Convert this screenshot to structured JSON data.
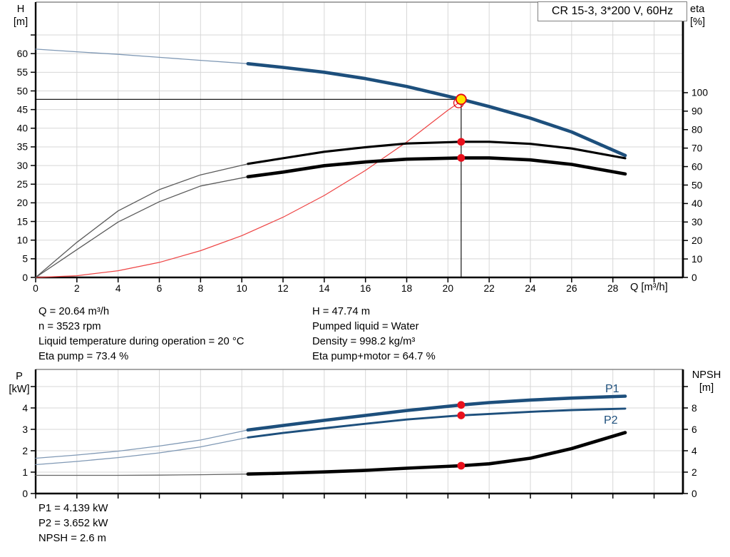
{
  "axis_labels": {
    "top_left": [
      "H",
      "[m]"
    ],
    "top_right": [
      "eta",
      "[%]"
    ],
    "bottom_left": [
      "P",
      "[kW]"
    ],
    "bottom_right": [
      "NPSH",
      "[m]"
    ]
  },
  "operating_point": {
    "left": [
      "Q = 20.64 m³/h",
      "n = 3523 rpm",
      "Liquid temperature during operation = 20 °C",
      "Eta pump = 73.4 %"
    ],
    "right": [
      "H = 47.74 m",
      "Pumped liquid = Water",
      "Density = 998.2 kg/m³",
      "Eta pump+motor = 64.7 %"
    ]
  },
  "results": [
    "P1 = 4.139 kW",
    "P2 = 3.652 kW",
    "NPSH = 2.6 m"
  ],
  "colors": {
    "curve_blue": "#1d4f7c",
    "thin_blue": "#8099b5",
    "curve_black": "#000000",
    "thin_gray": "#5a5a5a",
    "system_red": "#ee4444",
    "dot_red": "#e8101c",
    "duty_yellow": "#ffe400",
    "grid": "#d7d7d7"
  },
  "chart_data": [
    {
      "id": "head-efficiency-chart",
      "type": "line",
      "title": "CR 15-3, 3*200 V, 60Hz",
      "xlabel": "Q [m³/h]",
      "ylabel_left": "H [m]",
      "ylabel_right": "eta [%]",
      "xlim": [
        0,
        31.4
      ],
      "ylim_left": [
        0,
        73.8
      ],
      "ylim_right": [
        0,
        149
      ],
      "grid": true,
      "grid_color": "#d7d7d7",
      "x_ticks": {
        "values": [
          0,
          2,
          4,
          6,
          8,
          10,
          12,
          14,
          16,
          18,
          20,
          22,
          24,
          26,
          28,
          30
        ],
        "labels": [
          "0",
          "2",
          "4",
          "6",
          "8",
          "10",
          "12",
          "14",
          "16",
          "18",
          "20",
          "22",
          "24",
          "26",
          "28",
          ""
        ]
      },
      "left_ticks": {
        "values": [
          0,
          5,
          10,
          15,
          20,
          25,
          30,
          35,
          40,
          45,
          50,
          55,
          60,
          65
        ],
        "labels": [
          "0",
          "5",
          "10",
          "15",
          "20",
          "25",
          "30",
          "35",
          "40",
          "45",
          "50",
          "55",
          "60",
          ""
        ]
      },
      "right_ticks": {
        "values": [
          0,
          10,
          20,
          30,
          40,
          50,
          60,
          70,
          80,
          90,
          100
        ],
        "labels": [
          "0",
          "10",
          "20",
          "30",
          "40",
          "50",
          "60",
          "70",
          "80",
          "90",
          "100"
        ]
      },
      "series": [
        {
          "name": "system-curve",
          "axis": "left",
          "color": "#ee4444",
          "width": 1.2,
          "points": [
            [
              0,
              0
            ],
            [
              2,
              0.45
            ],
            [
              4,
              1.79
            ],
            [
              6,
              4.04
            ],
            [
              8,
              7.17
            ],
            [
              10,
              11.21
            ],
            [
              12,
              16.14
            ],
            [
              14,
              21.97
            ],
            [
              16,
              28.69
            ],
            [
              18,
              36.31
            ],
            [
              20,
              44.83
            ],
            [
              20.52,
              46.8
            ]
          ]
        },
        {
          "name": "duty-hline",
          "axis": "left",
          "color": "#000000",
          "width": 1.1,
          "points": [
            [
              0,
              47.74
            ],
            [
              20.64,
              47.74
            ]
          ]
        },
        {
          "name": "duty-vline",
          "axis": "left",
          "color": "#000000",
          "width": 1.1,
          "points": [
            [
              20.64,
              47.74
            ],
            [
              20.64,
              0
            ]
          ]
        },
        {
          "name": "eta-pump-motor-curve",
          "axis": "right",
          "color": "#000000",
          "width": 4.6,
          "split": 10.3,
          "thin_color": "#5a5a5a",
          "thin_width": 1.3,
          "points": [
            [
              0,
              0
            ],
            [
              2,
              15
            ],
            [
              4,
              30
            ],
            [
              6,
              41
            ],
            [
              8,
              49.5
            ],
            [
              10.3,
              54.5
            ],
            [
              12,
              57
            ],
            [
              14,
              60.5
            ],
            [
              16,
              62.5
            ],
            [
              18,
              64
            ],
            [
              20.64,
              64.7
            ],
            [
              22,
              64.7
            ],
            [
              24,
              63.6
            ],
            [
              26,
              61.2
            ],
            [
              28.6,
              56
            ]
          ]
        },
        {
          "name": "eta-pump-curve",
          "axis": "right",
          "color": "#000000",
          "width": 3.1,
          "split": 10.3,
          "thin_color": "#5a5a5a",
          "thin_width": 1.3,
          "points": [
            [
              0,
              0
            ],
            [
              2,
              19
            ],
            [
              4,
              36
            ],
            [
              6,
              47.5
            ],
            [
              8,
              55.5
            ],
            [
              10.3,
              61.5
            ],
            [
              12,
              64.5
            ],
            [
              14,
              68
            ],
            [
              16,
              70.5
            ],
            [
              18,
              72.5
            ],
            [
              20.64,
              73.4
            ],
            [
              22,
              73.4
            ],
            [
              24,
              72.3
            ],
            [
              26,
              69.8
            ],
            [
              28.6,
              64.5
            ]
          ]
        },
        {
          "name": "head-curve",
          "axis": "left",
          "color": "#1d4f7c",
          "width": 4.6,
          "split": 10.3,
          "thin_color": "#8099b5",
          "thin_width": 1.3,
          "points": [
            [
              0,
              61.2
            ],
            [
              2,
              60.5
            ],
            [
              4,
              59.8
            ],
            [
              6,
              59.0
            ],
            [
              8,
              58.2
            ],
            [
              10.3,
              57.3
            ],
            [
              12,
              56.3
            ],
            [
              14,
              55.0
            ],
            [
              16,
              53.3
            ],
            [
              18,
              51.2
            ],
            [
              20.64,
              47.74
            ],
            [
              22,
              45.8
            ],
            [
              24,
              42.7
            ],
            [
              26,
              39.0
            ],
            [
              28.6,
              32.7
            ]
          ]
        }
      ],
      "markers": [
        {
          "name": "eta-pump-point",
          "x": 20.64,
          "y": 73.4,
          "axis": "right",
          "r": 5.4,
          "fill": "#e8101c",
          "stroke": "none",
          "sw": 0
        },
        {
          "name": "eta-pump-motor-point",
          "x": 20.64,
          "y": 64.7,
          "axis": "right",
          "r": 5.4,
          "fill": "#e8101c",
          "stroke": "none",
          "sw": 0
        },
        {
          "name": "system-intersection-ring",
          "x": 20.52,
          "y": 46.8,
          "axis": "left",
          "r": 6.8,
          "fill": "none",
          "stroke": "#e30613",
          "sw": 1.3
        },
        {
          "name": "duty-point",
          "x": 20.64,
          "y": 47.74,
          "axis": "left",
          "r": 7,
          "fill": "#ffe400",
          "stroke": "#e30613",
          "sw": 1.8
        }
      ]
    },
    {
      "id": "power-npsh-chart",
      "type": "line",
      "title": "",
      "xlabel": "",
      "ylabel_left": "P [kW]",
      "ylabel_right": "NPSH [m]",
      "xlim": [
        0,
        31.4
      ],
      "ylim_left": [
        0,
        5.8
      ],
      "ylim_right": [
        0,
        11.6
      ],
      "grid": true,
      "grid_color": "#d7d7d7",
      "curve_labels": {
        "p1": "P1",
        "p2": "P2"
      },
      "x_ticks": {
        "values": [
          0,
          2,
          4,
          6,
          8,
          10,
          12,
          14,
          16,
          18,
          20,
          22,
          24,
          26,
          28,
          30
        ],
        "labels": [
          "",
          "",
          "",
          "",
          "",
          "",
          "",
          "",
          "",
          "",
          "",
          "",
          "",
          "",
          "",
          ""
        ]
      },
      "left_ticks": {
        "values": [
          0,
          1,
          2,
          3,
          4,
          5
        ],
        "labels": [
          "0",
          "1",
          "2",
          "3",
          "4",
          ""
        ]
      },
      "right_ticks": {
        "values": [
          0,
          2,
          4,
          6,
          8,
          10
        ],
        "labels": [
          "0",
          "2",
          "4",
          "6",
          "8",
          ""
        ]
      },
      "series": [
        {
          "name": "npsh-curve",
          "axis": "right",
          "color": "#000000",
          "width": 4.6,
          "split": 10.3,
          "thin_color": "#666666",
          "thin_width": 1.3,
          "points": [
            [
              0,
              1.7
            ],
            [
              2,
              1.7
            ],
            [
              4,
              1.7
            ],
            [
              6,
              1.72
            ],
            [
              8,
              1.76
            ],
            [
              10.3,
              1.82
            ],
            [
              12,
              1.9
            ],
            [
              14,
              2.02
            ],
            [
              16,
              2.17
            ],
            [
              18,
              2.37
            ],
            [
              20.64,
              2.6
            ],
            [
              22,
              2.78
            ],
            [
              24,
              3.3
            ],
            [
              26,
              4.2
            ],
            [
              28.6,
              5.7
            ]
          ]
        },
        {
          "name": "p2-curve",
          "axis": "left",
          "color": "#1d4f7c",
          "width": 2.9,
          "split": 10.3,
          "thin_color": "#8099b5",
          "thin_width": 1.3,
          "points": [
            [
              0,
              1.35
            ],
            [
              2,
              1.5
            ],
            [
              4,
              1.68
            ],
            [
              6,
              1.9
            ],
            [
              8,
              2.18
            ],
            [
              10.3,
              2.62
            ],
            [
              12,
              2.83
            ],
            [
              14,
              3.05
            ],
            [
              16,
              3.26
            ],
            [
              18,
              3.46
            ],
            [
              20.64,
              3.652
            ],
            [
              22,
              3.72
            ],
            [
              24,
              3.82
            ],
            [
              26,
              3.9
            ],
            [
              28.6,
              3.97
            ]
          ]
        },
        {
          "name": "p1-curve",
          "axis": "left",
          "color": "#1d4f7c",
          "width": 4.6,
          "split": 10.3,
          "thin_color": "#8099b5",
          "thin_width": 1.3,
          "points": [
            [
              0,
              1.65
            ],
            [
              2,
              1.8
            ],
            [
              4,
              1.98
            ],
            [
              6,
              2.22
            ],
            [
              8,
              2.5
            ],
            [
              10.3,
              2.97
            ],
            [
              12,
              3.18
            ],
            [
              14,
              3.42
            ],
            [
              16,
              3.65
            ],
            [
              18,
              3.88
            ],
            [
              20.64,
              4.139
            ],
            [
              22,
              4.25
            ],
            [
              24,
              4.37
            ],
            [
              26,
              4.46
            ],
            [
              28.6,
              4.55
            ]
          ]
        }
      ],
      "markers": [
        {
          "name": "p1-point",
          "x": 20.64,
          "y": 4.139,
          "axis": "left",
          "r": 5.4,
          "fill": "#e8101c",
          "stroke": "none",
          "sw": 0
        },
        {
          "name": "p2-point",
          "x": 20.64,
          "y": 3.652,
          "axis": "left",
          "r": 5.4,
          "fill": "#e8101c",
          "stroke": "none",
          "sw": 0
        },
        {
          "name": "npsh-point",
          "x": 20.64,
          "y": 2.6,
          "axis": "right",
          "r": 5.4,
          "fill": "#e8101c",
          "stroke": "none",
          "sw": 0
        }
      ]
    }
  ]
}
